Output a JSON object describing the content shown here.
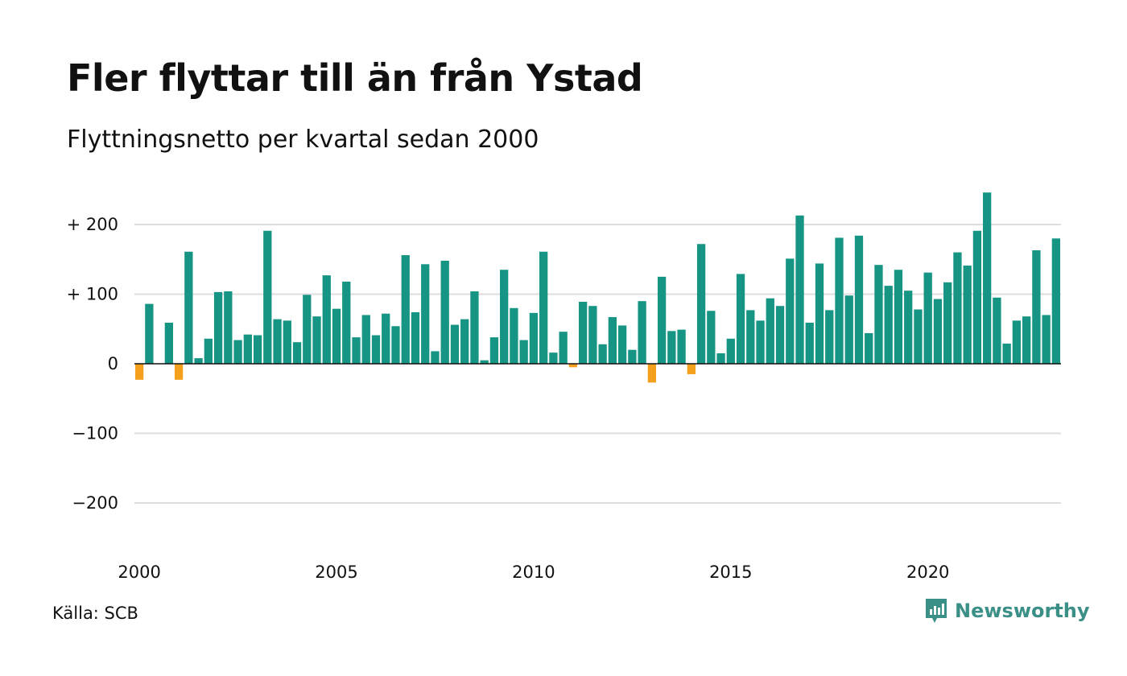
{
  "title": "Fler flyttar till än från Ystad",
  "subtitle": "Flyttningsnetto per kvartal sedan 2000",
  "source": "Källa: SCB",
  "brand": "Newsworthy",
  "colors": {
    "positive": "#169484",
    "negative": "#f4a01c",
    "grid": "#dddddd",
    "zero_line": "#111111",
    "brand": "#3a8f87"
  },
  "chart_data": {
    "type": "bar",
    "title": "Fler flyttar till än från Ystad",
    "subtitle": "Flyttningsnetto per kvartal sedan 2000",
    "xlabel": "",
    "ylabel": "",
    "ylim": [
      -260,
      260
    ],
    "yticks": [
      {
        "value": 200,
        "label": "+ 200"
      },
      {
        "value": 100,
        "label": "+ 100"
      },
      {
        "value": 0,
        "label": "0"
      },
      {
        "value": -100,
        "label": "−100"
      },
      {
        "value": -200,
        "label": "−200"
      }
    ],
    "xticks": [
      {
        "value": 2000,
        "label": "2000"
      },
      {
        "value": 2005,
        "label": "2005"
      },
      {
        "value": 2010,
        "label": "2010"
      },
      {
        "value": 2015,
        "label": "2015"
      },
      {
        "value": 2020,
        "label": "2020"
      }
    ],
    "grid": true,
    "start_year": 2000,
    "values": [
      -23,
      86,
      0,
      59,
      -23,
      161,
      8,
      36,
      103,
      104,
      34,
      42,
      41,
      191,
      64,
      62,
      31,
      99,
      68,
      127,
      79,
      118,
      38,
      70,
      41,
      72,
      54,
      156,
      74,
      143,
      18,
      148,
      56,
      64,
      104,
      5,
      38,
      135,
      80,
      34,
      73,
      161,
      16,
      46,
      -5,
      89,
      83,
      28,
      67,
      55,
      20,
      90,
      -27,
      125,
      47,
      49,
      -15,
      172,
      76,
      15,
      36,
      129,
      77,
      62,
      94,
      83,
      151,
      213,
      59,
      144,
      77,
      181,
      98,
      184,
      44,
      142,
      112,
      135,
      105,
      78,
      131,
      93,
      117,
      160,
      141,
      191,
      246,
      95,
      29,
      62,
      68,
      163,
      70,
      180
    ]
  }
}
